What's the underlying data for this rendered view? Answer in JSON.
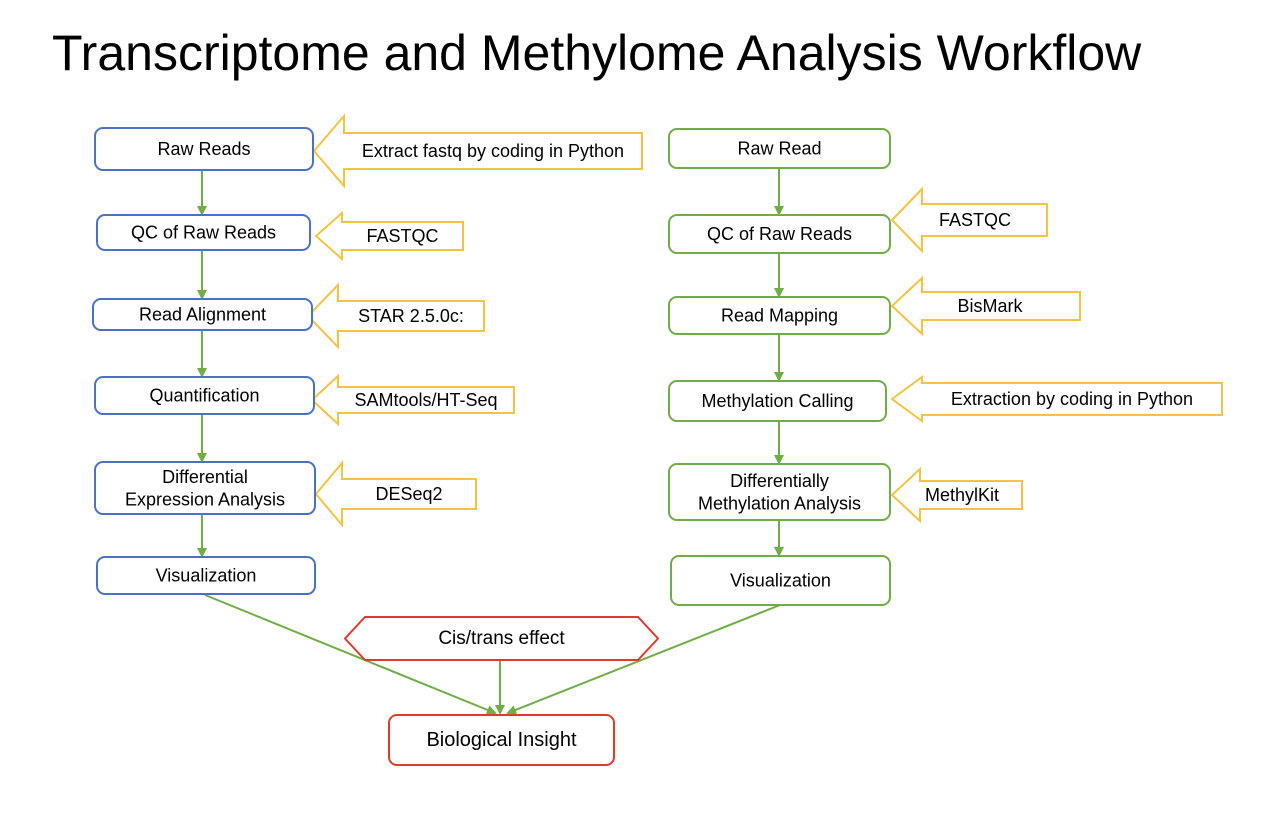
{
  "title": "Transcriptome and Methylome Analysis Workflow",
  "colors": {
    "transcriptome_box": "#4a72c4",
    "methylome_box": "#70ad47",
    "tool_arrow": "#f5c242",
    "flow_arrow": "#70ad47",
    "insight_box": "#e03a2f"
  },
  "transcriptome": {
    "steps": [
      "Raw Reads",
      "QC of Raw Reads",
      "Read Alignment",
      "Quantification",
      "Differential\nExpression Analysis",
      "Visualization"
    ],
    "tools": [
      "Extract fastq by coding in Python",
      "FASTQC",
      "STAR 2.5.0c:",
      "SAMtools/HT-Seq",
      "DESeq2"
    ]
  },
  "methylome": {
    "steps": [
      "Raw Read",
      "QC of Raw Reads",
      "Read Mapping",
      "Methylation Calling",
      "Differentially\nMethylation Analysis",
      "Visualization"
    ],
    "tools": [
      "FASTQC",
      "BisMark",
      "Extraction by coding in Python",
      "MethylKit"
    ]
  },
  "integration": {
    "effect": "Cis/trans effect",
    "result": "Biological Insight"
  }
}
